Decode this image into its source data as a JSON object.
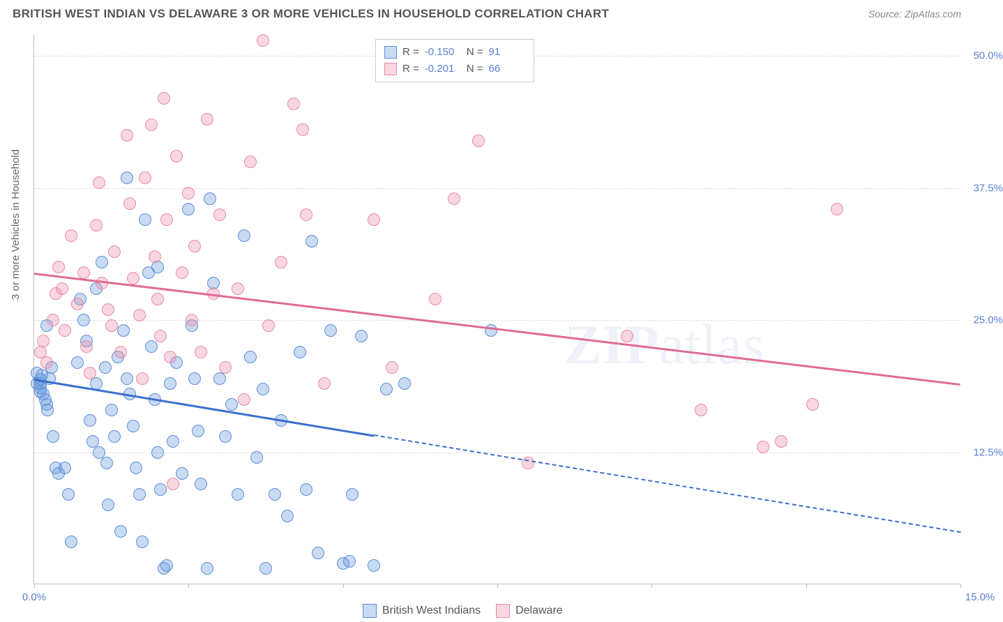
{
  "header": {
    "title": "BRITISH WEST INDIAN VS DELAWARE 3 OR MORE VEHICLES IN HOUSEHOLD CORRELATION CHART",
    "source": "Source: ZipAtlas.com"
  },
  "watermark": {
    "bold": "ZIP",
    "rest": "atlas"
  },
  "chart": {
    "type": "scatter",
    "background_color": "#ffffff",
    "grid_color": "#dddddd",
    "axis_color": "#bbbbbb",
    "tick_label_color": "#5b7fd1",
    "ylabel": "3 or more Vehicles in Household",
    "ylabel_color": "#666666",
    "xlim": [
      0,
      15
    ],
    "ylim": [
      0,
      52
    ],
    "xticks": [
      0,
      2.5,
      5,
      7.5,
      10,
      12.5,
      15
    ],
    "xticks_labeled": {
      "0": "0.0%",
      "15": "15.0%"
    },
    "yticks": [
      12.5,
      25.0,
      37.5,
      50.0
    ],
    "ytick_format": "{v}%",
    "marker_radius": 9,
    "marker_stroke_width": 1.5,
    "series": [
      {
        "name": "British West Indians",
        "fill": "rgba(100,150,220,0.35)",
        "stroke": "#5b8fd6",
        "line_color": "#3a6fd0",
        "R": "-0.150",
        "N": "91",
        "trend": {
          "x1": 0,
          "y1": 19.5,
          "x2": 15,
          "y2": 5.0,
          "solid_until_x": 5.5
        },
        "points": [
          [
            0.05,
            19.0
          ],
          [
            0.05,
            20.0
          ],
          [
            0.1,
            18.2
          ],
          [
            0.1,
            18.6
          ],
          [
            0.1,
            19.0
          ],
          [
            0.1,
            19.4
          ],
          [
            0.12,
            19.8
          ],
          [
            0.15,
            18.0
          ],
          [
            0.18,
            17.5
          ],
          [
            0.2,
            24.5
          ],
          [
            0.2,
            17.0
          ],
          [
            0.22,
            16.5
          ],
          [
            0.25,
            19.5
          ],
          [
            0.28,
            20.5
          ],
          [
            0.3,
            14.0
          ],
          [
            0.35,
            11.0
          ],
          [
            0.4,
            10.5
          ],
          [
            0.5,
            11.0
          ],
          [
            0.55,
            8.5
          ],
          [
            0.6,
            4.0
          ],
          [
            0.7,
            21.0
          ],
          [
            0.75,
            27.0
          ],
          [
            0.8,
            25.0
          ],
          [
            0.85,
            23.0
          ],
          [
            0.9,
            15.5
          ],
          [
            0.95,
            13.5
          ],
          [
            1.0,
            28.0
          ],
          [
            1.0,
            19.0
          ],
          [
            1.05,
            12.5
          ],
          [
            1.1,
            30.5
          ],
          [
            1.15,
            20.5
          ],
          [
            1.18,
            11.5
          ],
          [
            1.2,
            7.5
          ],
          [
            1.25,
            16.5
          ],
          [
            1.3,
            14.0
          ],
          [
            1.35,
            21.5
          ],
          [
            1.4,
            5.0
          ],
          [
            1.45,
            24.0
          ],
          [
            1.5,
            38.5
          ],
          [
            1.5,
            19.5
          ],
          [
            1.55,
            18.0
          ],
          [
            1.6,
            15.0
          ],
          [
            1.65,
            11.0
          ],
          [
            1.7,
            8.5
          ],
          [
            1.75,
            4.0
          ],
          [
            1.8,
            34.5
          ],
          [
            1.85,
            29.5
          ],
          [
            1.9,
            22.5
          ],
          [
            1.95,
            17.5
          ],
          [
            2.0,
            30.0
          ],
          [
            2.0,
            12.5
          ],
          [
            2.05,
            9.0
          ],
          [
            2.1,
            1.5
          ],
          [
            2.15,
            1.8
          ],
          [
            2.2,
            19.0
          ],
          [
            2.25,
            13.5
          ],
          [
            2.3,
            21.0
          ],
          [
            2.4,
            10.5
          ],
          [
            2.5,
            35.5
          ],
          [
            2.55,
            24.5
          ],
          [
            2.6,
            19.5
          ],
          [
            2.65,
            14.5
          ],
          [
            2.7,
            9.5
          ],
          [
            2.8,
            1.5
          ],
          [
            2.85,
            36.5
          ],
          [
            2.9,
            28.5
          ],
          [
            3.0,
            19.5
          ],
          [
            3.1,
            14.0
          ],
          [
            3.2,
            17.0
          ],
          [
            3.3,
            8.5
          ],
          [
            3.4,
            33.0
          ],
          [
            3.5,
            21.5
          ],
          [
            3.6,
            12.0
          ],
          [
            3.7,
            18.5
          ],
          [
            3.75,
            1.5
          ],
          [
            3.9,
            8.5
          ],
          [
            4.0,
            15.5
          ],
          [
            4.1,
            6.5
          ],
          [
            4.3,
            22.0
          ],
          [
            4.4,
            9.0
          ],
          [
            4.5,
            32.5
          ],
          [
            4.6,
            3.0
          ],
          [
            4.8,
            24.0
          ],
          [
            5.0,
            2.0
          ],
          [
            5.1,
            2.2
          ],
          [
            5.15,
            8.5
          ],
          [
            5.3,
            23.5
          ],
          [
            5.5,
            1.8
          ],
          [
            5.7,
            18.5
          ],
          [
            6.0,
            19.0
          ],
          [
            7.4,
            24.0
          ]
        ]
      },
      {
        "name": "Delaware",
        "fill": "rgba(235,130,160,0.32)",
        "stroke": "#e68aa8",
        "line_color": "#e06b93",
        "R": "-0.201",
        "N": "66",
        "trend": {
          "x1": 0,
          "y1": 29.5,
          "x2": 15,
          "y2": 19.0,
          "solid_until_x": 15
        },
        "points": [
          [
            0.1,
            22.0
          ],
          [
            0.15,
            23.0
          ],
          [
            0.2,
            21.0
          ],
          [
            0.3,
            25.0
          ],
          [
            0.35,
            27.5
          ],
          [
            0.4,
            30.0
          ],
          [
            0.45,
            28.0
          ],
          [
            0.5,
            24.0
          ],
          [
            0.6,
            33.0
          ],
          [
            0.7,
            26.5
          ],
          [
            0.8,
            29.5
          ],
          [
            0.85,
            22.5
          ],
          [
            0.9,
            20.0
          ],
          [
            1.0,
            34.0
          ],
          [
            1.05,
            38.0
          ],
          [
            1.1,
            28.5
          ],
          [
            1.2,
            26.0
          ],
          [
            1.25,
            24.5
          ],
          [
            1.3,
            31.5
          ],
          [
            1.4,
            22.0
          ],
          [
            1.5,
            42.5
          ],
          [
            1.55,
            36.0
          ],
          [
            1.6,
            29.0
          ],
          [
            1.7,
            25.5
          ],
          [
            1.75,
            19.5
          ],
          [
            1.8,
            38.5
          ],
          [
            1.9,
            43.5
          ],
          [
            1.95,
            31.0
          ],
          [
            2.0,
            27.0
          ],
          [
            2.05,
            23.5
          ],
          [
            2.1,
            46.0
          ],
          [
            2.15,
            34.5
          ],
          [
            2.2,
            21.5
          ],
          [
            2.25,
            9.5
          ],
          [
            2.3,
            40.5
          ],
          [
            2.4,
            29.5
          ],
          [
            2.5,
            37.0
          ],
          [
            2.55,
            25.0
          ],
          [
            2.6,
            32.0
          ],
          [
            2.7,
            22.0
          ],
          [
            2.8,
            44.0
          ],
          [
            2.9,
            27.5
          ],
          [
            3.0,
            35.0
          ],
          [
            3.1,
            20.5
          ],
          [
            3.3,
            28.0
          ],
          [
            3.4,
            17.5
          ],
          [
            3.5,
            40.0
          ],
          [
            3.7,
            51.5
          ],
          [
            3.8,
            24.5
          ],
          [
            4.0,
            30.5
          ],
          [
            4.2,
            45.5
          ],
          [
            4.35,
            43.0
          ],
          [
            4.4,
            35.0
          ],
          [
            4.7,
            19.0
          ],
          [
            5.5,
            34.5
          ],
          [
            5.8,
            20.5
          ],
          [
            6.5,
            27.0
          ],
          [
            6.8,
            36.5
          ],
          [
            7.2,
            42.0
          ],
          [
            8.0,
            11.5
          ],
          [
            9.6,
            23.5
          ],
          [
            10.8,
            16.5
          ],
          [
            11.8,
            13.0
          ],
          [
            12.1,
            13.5
          ],
          [
            12.6,
            17.0
          ],
          [
            13.0,
            35.5
          ]
        ]
      }
    ]
  },
  "bottom_legend": {
    "items": [
      "British West Indians",
      "Delaware"
    ]
  }
}
